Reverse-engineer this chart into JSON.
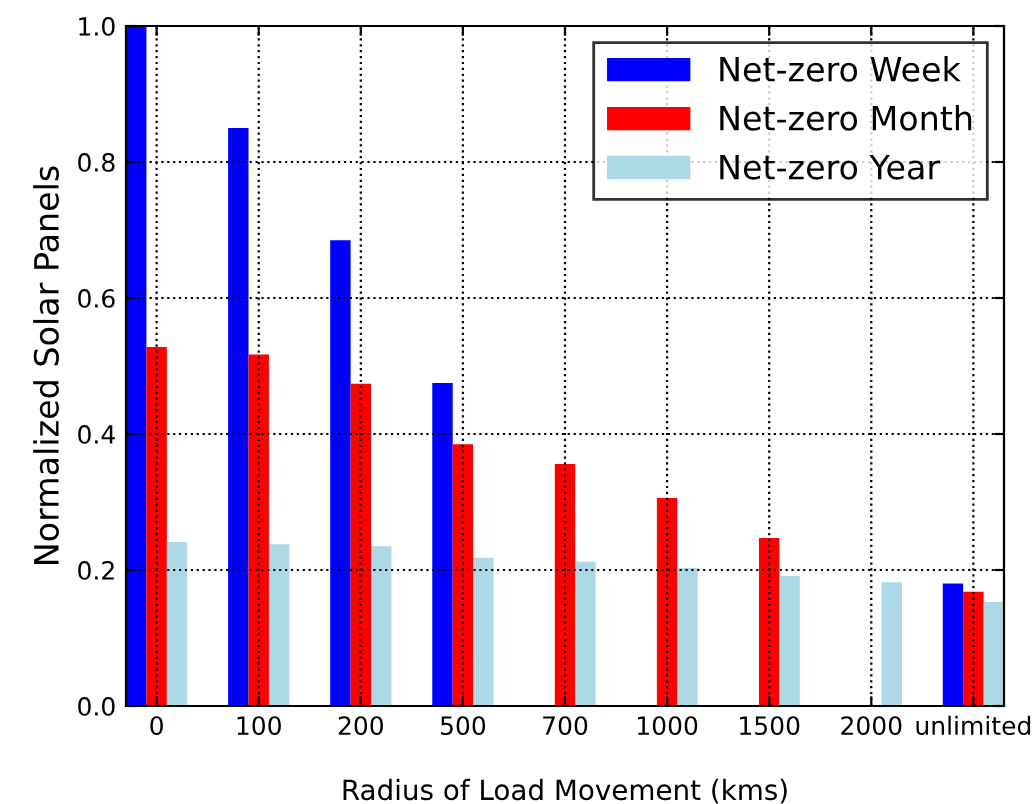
{
  "chart_data": {
    "type": "bar",
    "xlabel": "Radius of Load Movement (kms)",
    "ylabel": "Normalized Solar Panels",
    "categories": [
      "0",
      "100",
      "200",
      "500",
      "700",
      "1000",
      "1500",
      "2000",
      "unlimited"
    ],
    "series": [
      {
        "name": "Net-zero Week",
        "color": "#0000ff",
        "values": [
          1.0,
          0.85,
          0.685,
          0.475,
          null,
          null,
          null,
          null,
          0.18
        ]
      },
      {
        "name": "Net-zero Month",
        "color": "#ff0000",
        "values": [
          0.528,
          0.517,
          0.474,
          0.385,
          0.356,
          0.306,
          0.247,
          null,
          0.168
        ]
      },
      {
        "name": "Net-zero Year",
        "color": "#add8e6",
        "values": [
          0.241,
          0.238,
          0.235,
          0.218,
          0.212,
          0.203,
          0.191,
          0.182,
          0.153
        ]
      }
    ],
    "ylim": [
      0,
      1.0
    ],
    "yticks": [
      {
        "value": 0,
        "label": "0.0"
      },
      0.2,
      0.4,
      0.6,
      0.8,
      {
        "value": 1,
        "label": "1.0"
      }
    ],
    "grid": true,
    "legend": "top right"
  }
}
